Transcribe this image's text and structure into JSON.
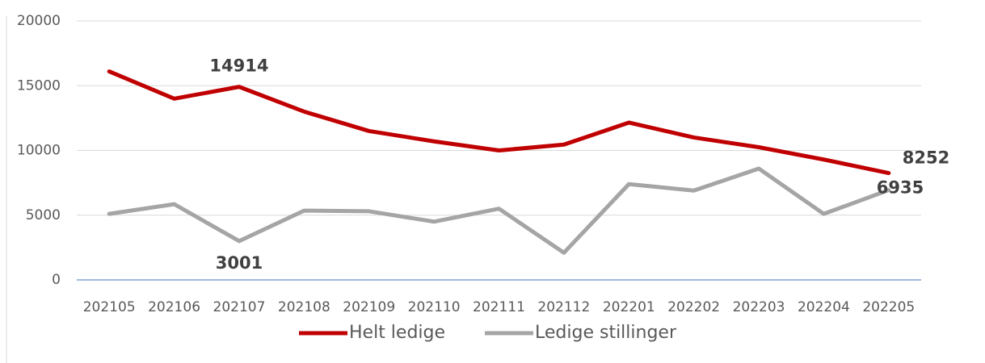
{
  "chart_data": {
    "type": "line",
    "categories": [
      "202105",
      "202106",
      "202107",
      "202108",
      "202109",
      "202110",
      "202111",
      "202112",
      "202201",
      "202202",
      "202203",
      "202204",
      "202205"
    ],
    "series": [
      {
        "name": "Helt ledige",
        "color": "#c00000",
        "values": [
          16100,
          14000,
          14914,
          13000,
          11500,
          10700,
          10000,
          10450,
          12150,
          11000,
          10250,
          9300,
          8252
        ],
        "labels_at": [
          2,
          12
        ]
      },
      {
        "name": "Ledige stillinger",
        "color": "#a5a5a5",
        "values": [
          5100,
          5850,
          3001,
          5350,
          5300,
          4500,
          5500,
          2100,
          7400,
          6900,
          8600,
          5100,
          6935
        ],
        "labels_at": [
          2,
          12
        ]
      }
    ],
    "ylim": [
      0,
      20000
    ],
    "yticks": [
      0,
      5000,
      10000,
      15000,
      20000
    ],
    "grid": true,
    "legend": "bottom"
  }
}
